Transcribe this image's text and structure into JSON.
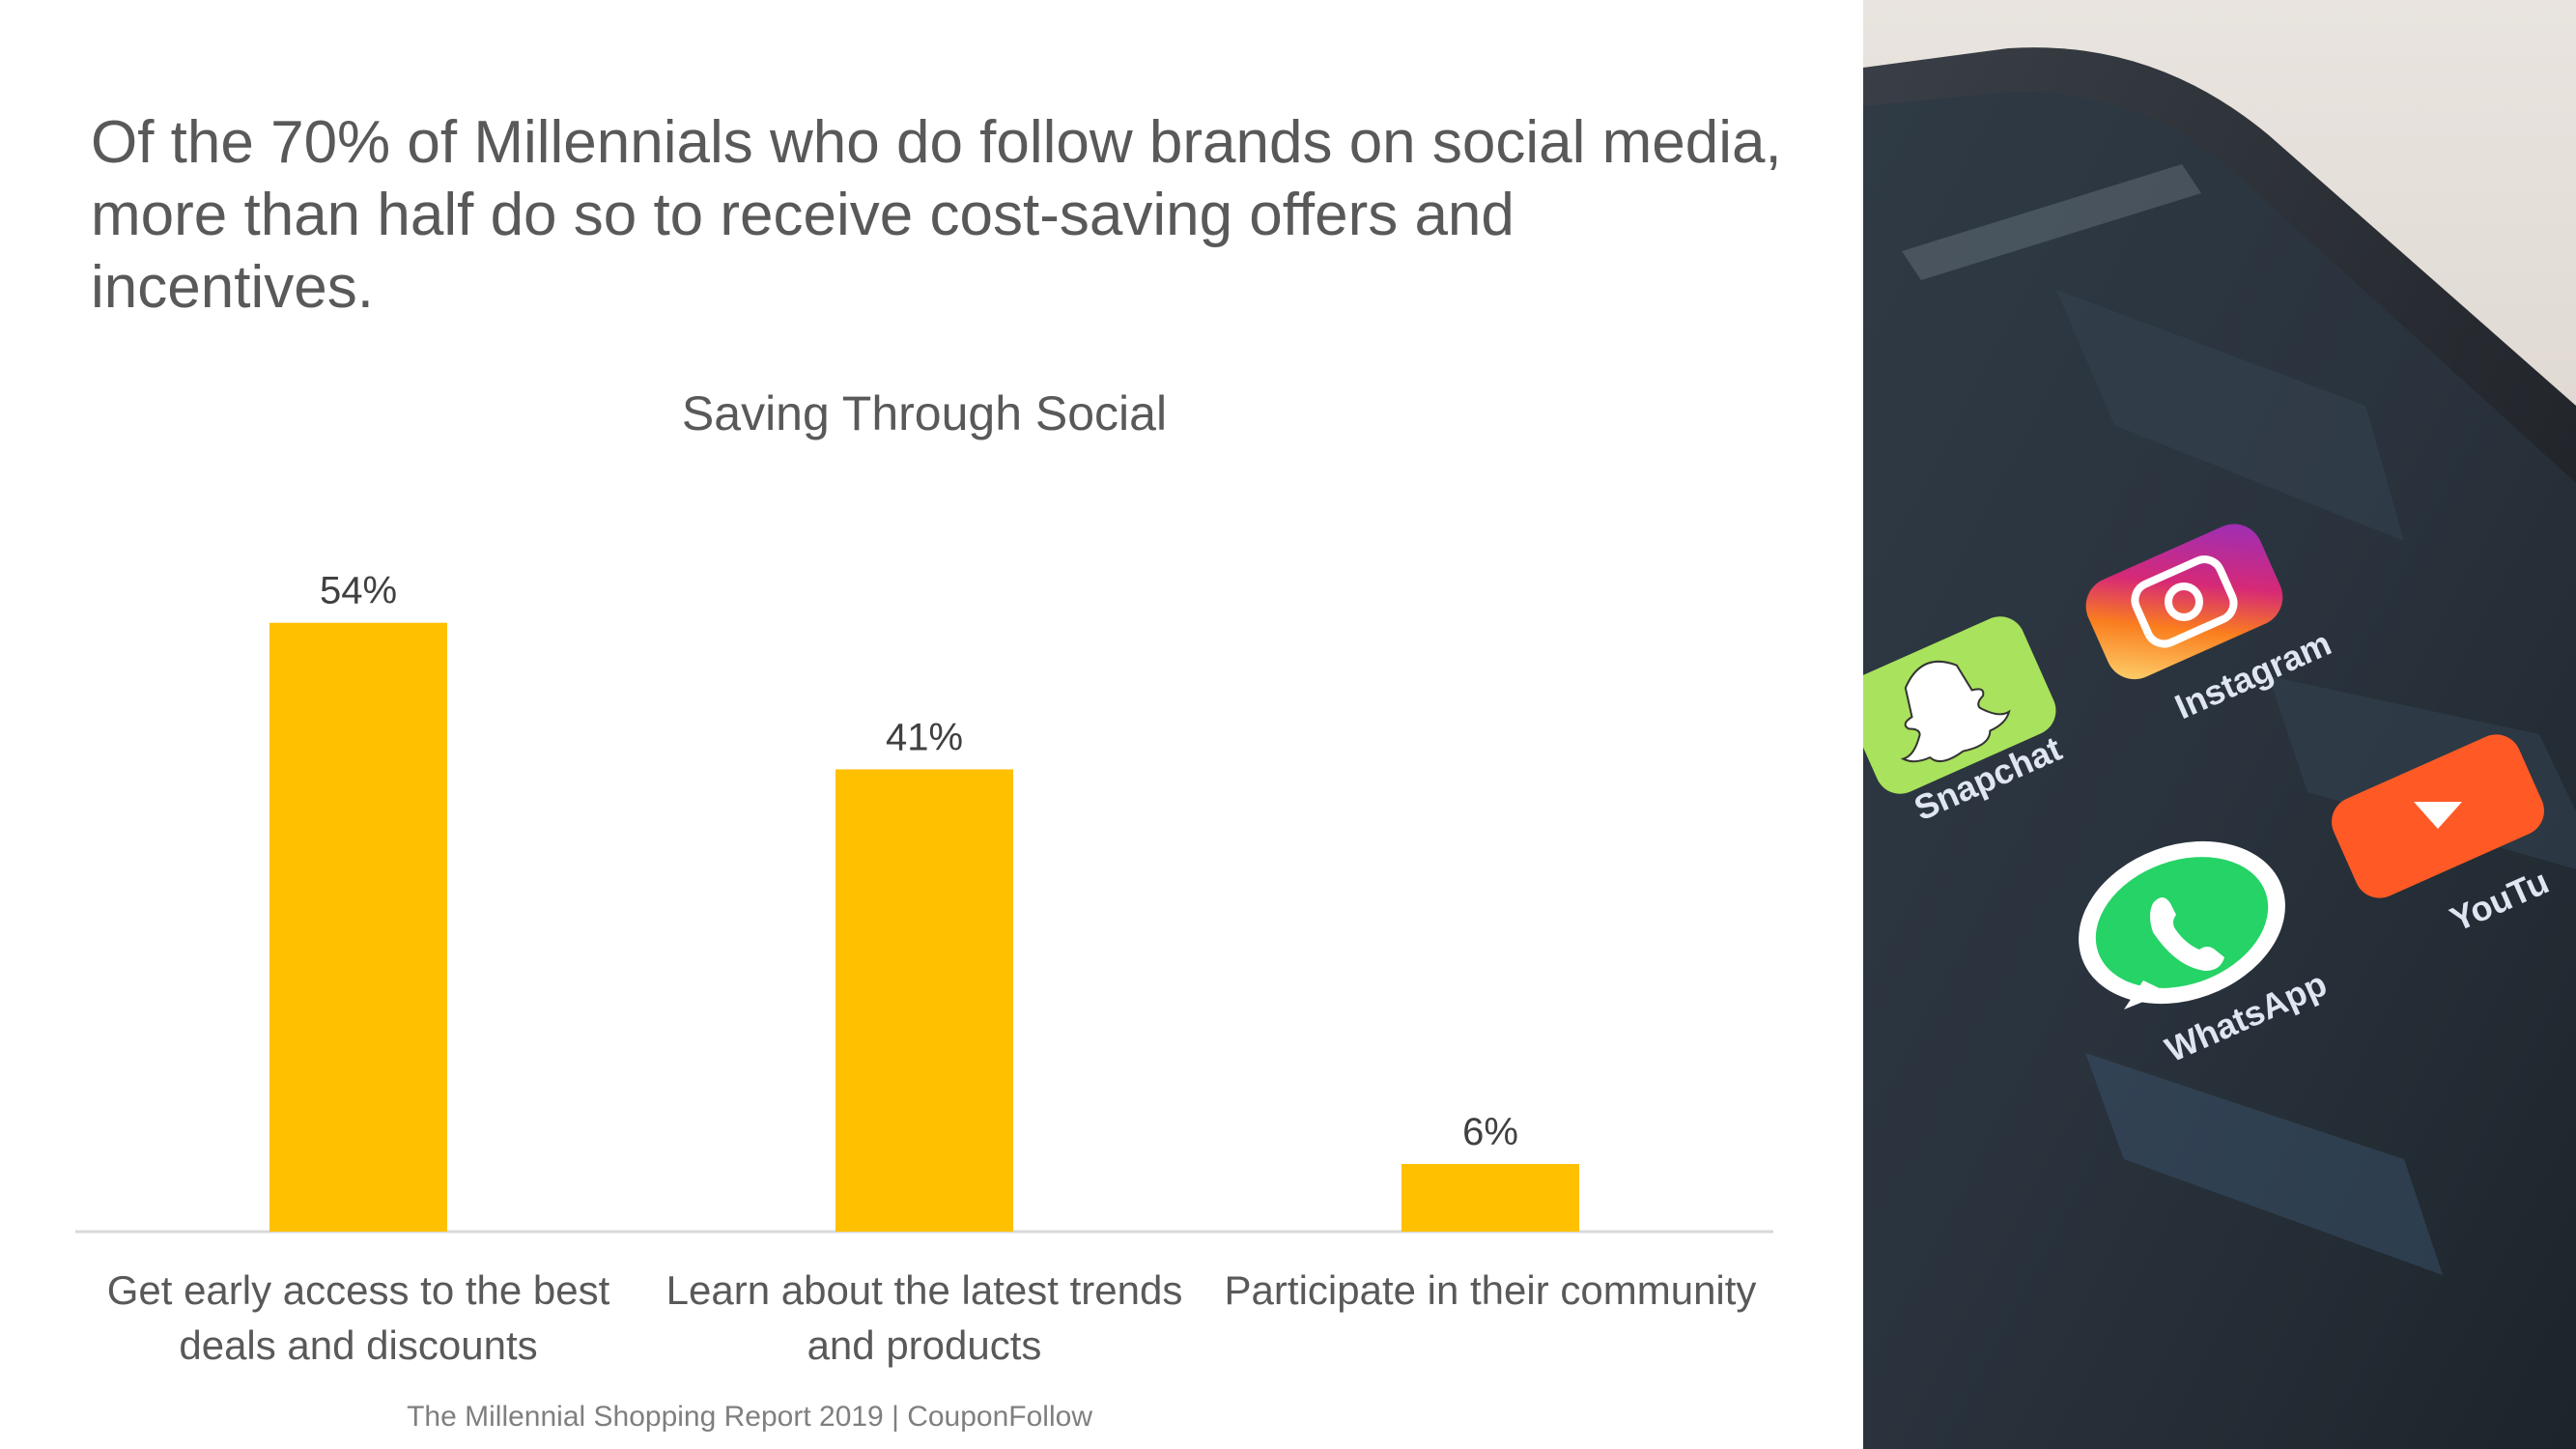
{
  "headline": "Of the 70% of Millennials who do follow brands on social media, more than half do so to receive cost-saving offers and incentives.",
  "source": "The Millennial Shopping Report 2019 | CouponFollow",
  "colors": {
    "bar": "#FFC000",
    "text": "#595959",
    "axis": "#d9d9d9"
  },
  "chart_data": {
    "type": "bar",
    "title": "Saving Through Social",
    "categories": [
      [
        "Get early access to the best",
        "deals and discounts"
      ],
      [
        "Learn about the latest trends",
        "and products"
      ],
      [
        "Participate in their community"
      ]
    ],
    "values": [
      54,
      41,
      6
    ],
    "value_labels": [
      "54%",
      "41%",
      "6%"
    ],
    "xlabel": "",
    "ylabel": "",
    "ylim": [
      0,
      60
    ],
    "grid": false,
    "legend": "none"
  },
  "photo": {
    "apps": [
      {
        "label": "Snapchat",
        "icon": "snapchat-icon",
        "color": "#a8e05a"
      },
      {
        "label": "Instagram",
        "icon": "instagram-icon",
        "color": "#e1306c"
      },
      {
        "label": "WhatsApp",
        "icon": "whatsapp-icon",
        "color": "#25d366"
      },
      {
        "label": "YouTu",
        "icon": "youtube-icon",
        "color": "#ff4e22"
      }
    ]
  }
}
